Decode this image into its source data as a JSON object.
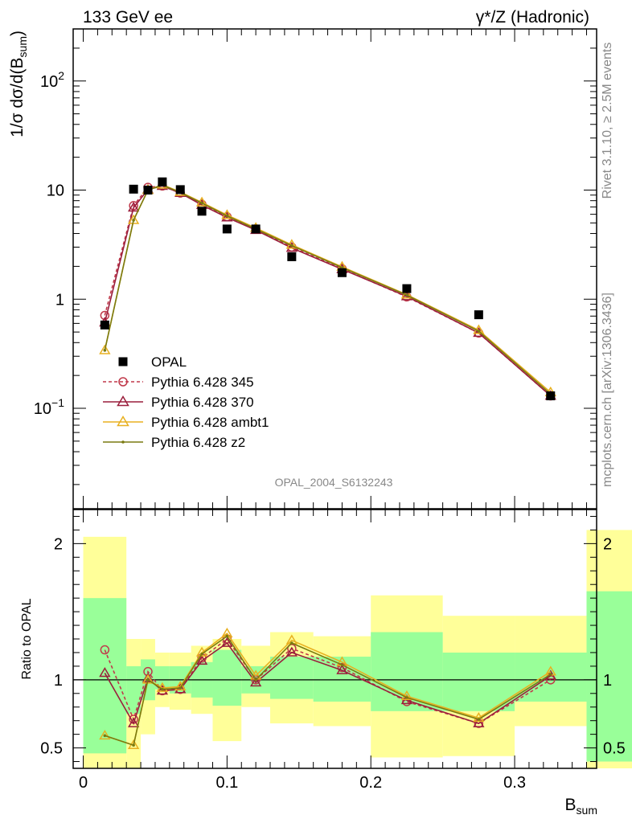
{
  "header": {
    "left": "133 GeV ee",
    "right_prefix": "γ*/Z",
    "right_suffix": " (Hadronic)"
  },
  "side_labels": {
    "rivet": "Rivet 3.1.10, ≥ 2.5M events",
    "mcplots": "mcplots.cern.ch [arXiv:1306.3436]"
  },
  "chart_data": [
    {
      "type": "scatter",
      "panel": "main",
      "ylabel_prefix": "1/σ dσ/d(B",
      "ylabel_sub": "sum",
      "ylabel_suffix": ")",
      "yscale": "log",
      "ylim": [
        0.012,
        300
      ],
      "xlim": [
        -0.007,
        0.357
      ],
      "watermark": "OPAL_2004_S6132243",
      "y_ticks": [
        {
          "v": 0.1,
          "base": "10",
          "exp": "−1"
        },
        {
          "v": 1,
          "base": "1",
          "exp": ""
        },
        {
          "v": 10,
          "base": "10",
          "exp": ""
        },
        {
          "v": 100,
          "base": "10",
          "exp": "2"
        }
      ],
      "data": {
        "name": "OPAL",
        "x": [
          0.015,
          0.035,
          0.045,
          0.055,
          0.0675,
          0.0825,
          0.1,
          0.12,
          0.145,
          0.18,
          0.225,
          0.275,
          0.325
        ],
        "y": [
          0.58,
          10.2,
          10.0,
          11.9,
          10.1,
          6.4,
          4.4,
          4.4,
          2.45,
          1.75,
          1.25,
          0.72,
          0.13
        ]
      },
      "series": [
        {
          "name": "Pythia 6.428 345",
          "color": "#c0394a",
          "marker": "circle",
          "dash": true,
          "y": [
            0.71,
            7.2,
            10.6,
            10.9,
            9.4,
            7.4,
            5.7,
            4.4,
            3.0,
            1.9,
            1.05,
            0.49,
            0.13
          ]
        },
        {
          "name": "Pythia 6.428 370",
          "color": "#9a1e3c",
          "marker": "triangle",
          "dash": false,
          "y": [
            0.61,
            6.9,
            10.1,
            10.9,
            9.4,
            7.3,
            5.6,
            4.3,
            2.95,
            1.88,
            1.06,
            0.49,
            0.13
          ]
        },
        {
          "name": "Pythia 6.428 ambt1",
          "color": "#e8b020",
          "marker": "triangle",
          "dash": false,
          "y": [
            0.34,
            5.3,
            10.0,
            11.2,
            9.6,
            7.7,
            5.9,
            4.5,
            3.15,
            1.98,
            1.1,
            0.52,
            0.14
          ]
        },
        {
          "name": "Pythia 6.428 z2",
          "color": "#7a7a10",
          "marker": "dot",
          "dash": false,
          "y": [
            0.34,
            5.3,
            10.0,
            11.1,
            9.5,
            7.6,
            5.8,
            4.4,
            3.1,
            1.95,
            1.09,
            0.51,
            0.135
          ]
        }
      ]
    },
    {
      "type": "line",
      "panel": "ratio",
      "ylabel": "Ratio to OPAL",
      "xlabel_main": "B",
      "xlabel_sub": "sum",
      "ylim": [
        0.35,
        2.25
      ],
      "xlim": [
        -0.007,
        0.357
      ],
      "x_ticks": [
        {
          "v": 0,
          "label": "0"
        },
        {
          "v": 0.1,
          "label": "0.1"
        },
        {
          "v": 0.2,
          "label": "0.2"
        },
        {
          "v": 0.3,
          "label": "0.3"
        }
      ],
      "y_ticks": [
        {
          "v": 0.5,
          "label": "0.5"
        },
        {
          "v": 1,
          "label": "1"
        },
        {
          "v": 2,
          "label": "2"
        }
      ],
      "bands": {
        "edges": [
          0,
          0.03,
          0.04,
          0.05,
          0.06,
          0.075,
          0.09,
          0.11,
          0.13,
          0.16,
          0.2,
          0.25,
          0.3,
          0.35
        ],
        "yellow": [
          [
            0.35,
            2.05
          ],
          [
            0.35,
            1.3
          ],
          [
            0.6,
            1.3
          ],
          [
            0.8,
            1.2
          ],
          [
            0.78,
            1.2
          ],
          [
            0.75,
            1.25
          ],
          [
            0.55,
            1.3
          ],
          [
            0.8,
            1.25
          ],
          [
            0.68,
            1.35
          ],
          [
            0.66,
            1.32
          ],
          [
            0.43,
            1.62
          ],
          [
            0.44,
            1.47
          ],
          [
            0.66,
            1.47
          ],
          [
            0.35,
            2.1
          ]
        ],
        "green": [
          [
            0.46,
            1.6
          ],
          [
            0.75,
            1.1
          ],
          [
            0.85,
            1.15
          ],
          [
            0.93,
            1.1
          ],
          [
            0.9,
            1.1
          ],
          [
            0.87,
            1.13
          ],
          [
            0.81,
            1.22
          ],
          [
            0.9,
            1.1
          ],
          [
            0.86,
            1.17
          ],
          [
            0.84,
            1.17
          ],
          [
            0.77,
            1.35
          ],
          [
            0.77,
            1.2
          ],
          [
            0.84,
            1.2
          ],
          [
            0.4,
            1.65
          ]
        ]
      },
      "ratios": [
        [
          1.22,
          0.71,
          1.06,
          0.92,
          0.93,
          1.16,
          1.3,
          1.0,
          1.23,
          1.09,
          0.84,
          0.68,
          1.0
        ],
        [
          1.05,
          0.68,
          1.01,
          0.92,
          0.93,
          1.14,
          1.27,
          0.98,
          1.2,
          1.07,
          0.85,
          0.68,
          1.03
        ],
        [
          0.59,
          0.52,
          1.0,
          0.94,
          0.95,
          1.2,
          1.34,
          1.03,
          1.29,
          1.13,
          0.88,
          0.72,
          1.06
        ],
        [
          0.59,
          0.52,
          1.0,
          0.93,
          0.94,
          1.19,
          1.32,
          1.0,
          1.27,
          1.11,
          0.87,
          0.71,
          1.04
        ]
      ]
    }
  ]
}
